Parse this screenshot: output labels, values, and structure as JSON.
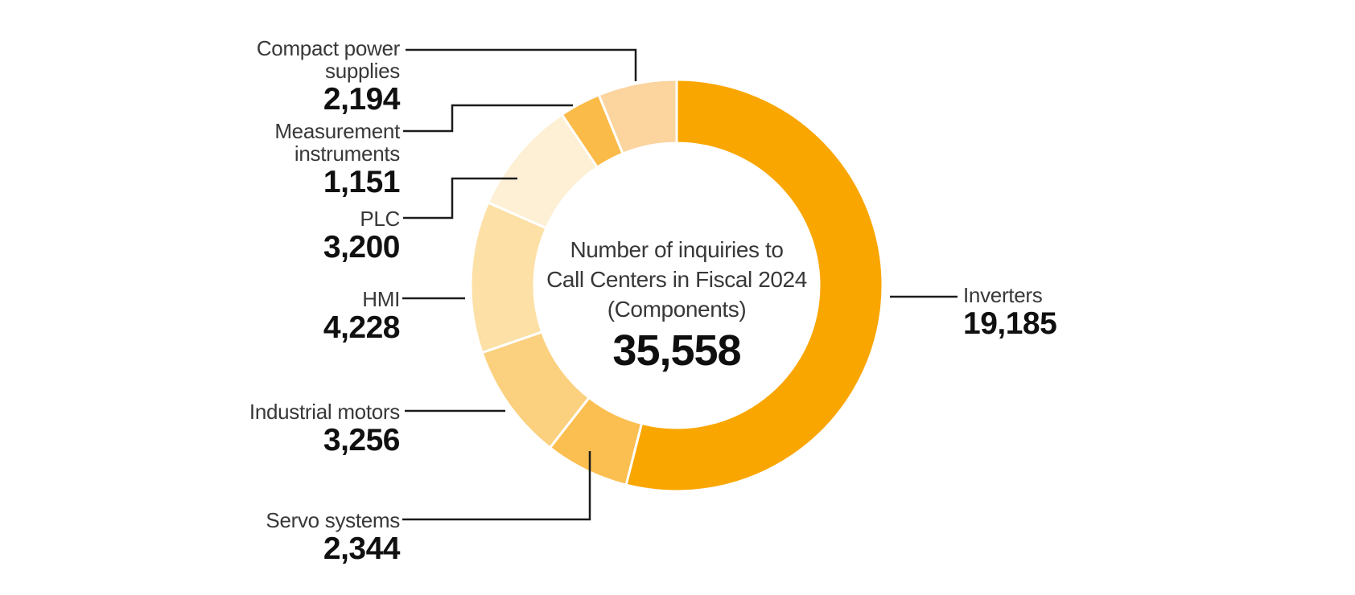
{
  "chart_data": {
    "type": "pie",
    "variant": "donut",
    "title": "Number of inquiries to Call Centers in Fiscal 2024 (Components)",
    "center_title_lines": [
      "Number of inquiries to",
      "Call Centers in Fiscal 2024",
      "(Components)"
    ],
    "center_total_display": "35,558",
    "total_value": 35558,
    "start_angle_deg": 0,
    "direction": "clockwise",
    "legend_position": "callout-labels",
    "ring_gap_color": "#ffffff",
    "callout_line_color": "#1b1b1b",
    "segments": [
      {
        "label": "Inverters",
        "label_lines": [
          "Inverters"
        ],
        "value": 19185,
        "display": "19,185",
        "color": "#FAA600"
      },
      {
        "label": "Servo systems",
        "label_lines": [
          "Servo systems"
        ],
        "value": 2344,
        "display": "2,344",
        "color": "#FBBE50"
      },
      {
        "label": "Industrial motors",
        "label_lines": [
          "Industrial motors"
        ],
        "value": 3256,
        "display": "3,256",
        "color": "#FBD07E"
      },
      {
        "label": "HMI",
        "label_lines": [
          "HMI"
        ],
        "value": 4228,
        "display": "4,228",
        "color": "#FCE0A6"
      },
      {
        "label": "PLC",
        "label_lines": [
          "PLC"
        ],
        "value": 3200,
        "display": "3,200",
        "color": "#FDF0D4"
      },
      {
        "label": "Measurement instruments",
        "label_lines": [
          "Measurement",
          "instruments"
        ],
        "value": 1151,
        "display": "1,151",
        "color": "#FBBB48"
      },
      {
        "label": "Compact power supplies",
        "label_lines": [
          "Compact power",
          "supplies"
        ],
        "value": 2194,
        "display": "2,194",
        "color": "#FBD49E"
      }
    ]
  }
}
